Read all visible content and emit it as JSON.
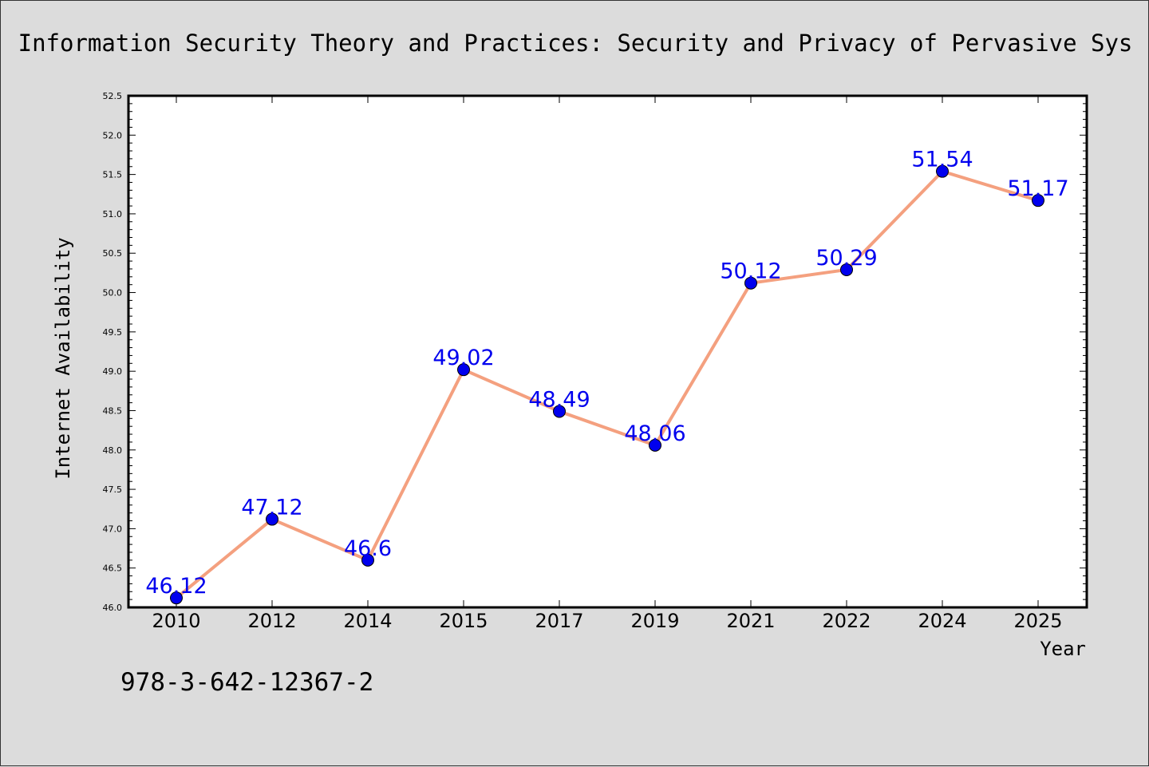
{
  "chart_data": {
    "type": "line",
    "title": "Information Security Theory and Practices: Security and Privacy of Pervasive Sys",
    "xlabel": "Year",
    "ylabel": "Internet Availability",
    "categories": [
      "2010",
      "2012",
      "2014",
      "2015",
      "2017",
      "2019",
      "2021",
      "2022",
      "2024",
      "2025"
    ],
    "series": [
      {
        "values": [
          46.12,
          47.12,
          46.6,
          49.02,
          48.49,
          48.06,
          50.12,
          50.29,
          51.54,
          51.17
        ],
        "labels": [
          "46.12",
          "47.12",
          "46.6",
          "49.02",
          "48.49",
          "48.06",
          "50.12",
          "50.29",
          "51.54",
          "51.17"
        ]
      }
    ],
    "ylim": [
      46.0,
      52.5
    ],
    "yticks": [
      "46.0",
      "46.5",
      "47.0",
      "47.5",
      "48.0",
      "48.5",
      "49.0",
      "49.5",
      "50.0",
      "50.5",
      "51.0",
      "51.5",
      "52.0",
      "52.5"
    ],
    "ytick_values": [
      46.0,
      46.5,
      47.0,
      47.5,
      48.0,
      48.5,
      49.0,
      49.5,
      50.0,
      50.5,
      51.0,
      51.5,
      52.0,
      52.5
    ],
    "grid": false,
    "line_color": "#f4a07f",
    "marker_color": "#0000ee",
    "label_color": "#0000ee",
    "background": "#dcdcdc",
    "plot_background": "#ffffff"
  },
  "footer": {
    "isbn": "978-3-642-12367-2"
  }
}
